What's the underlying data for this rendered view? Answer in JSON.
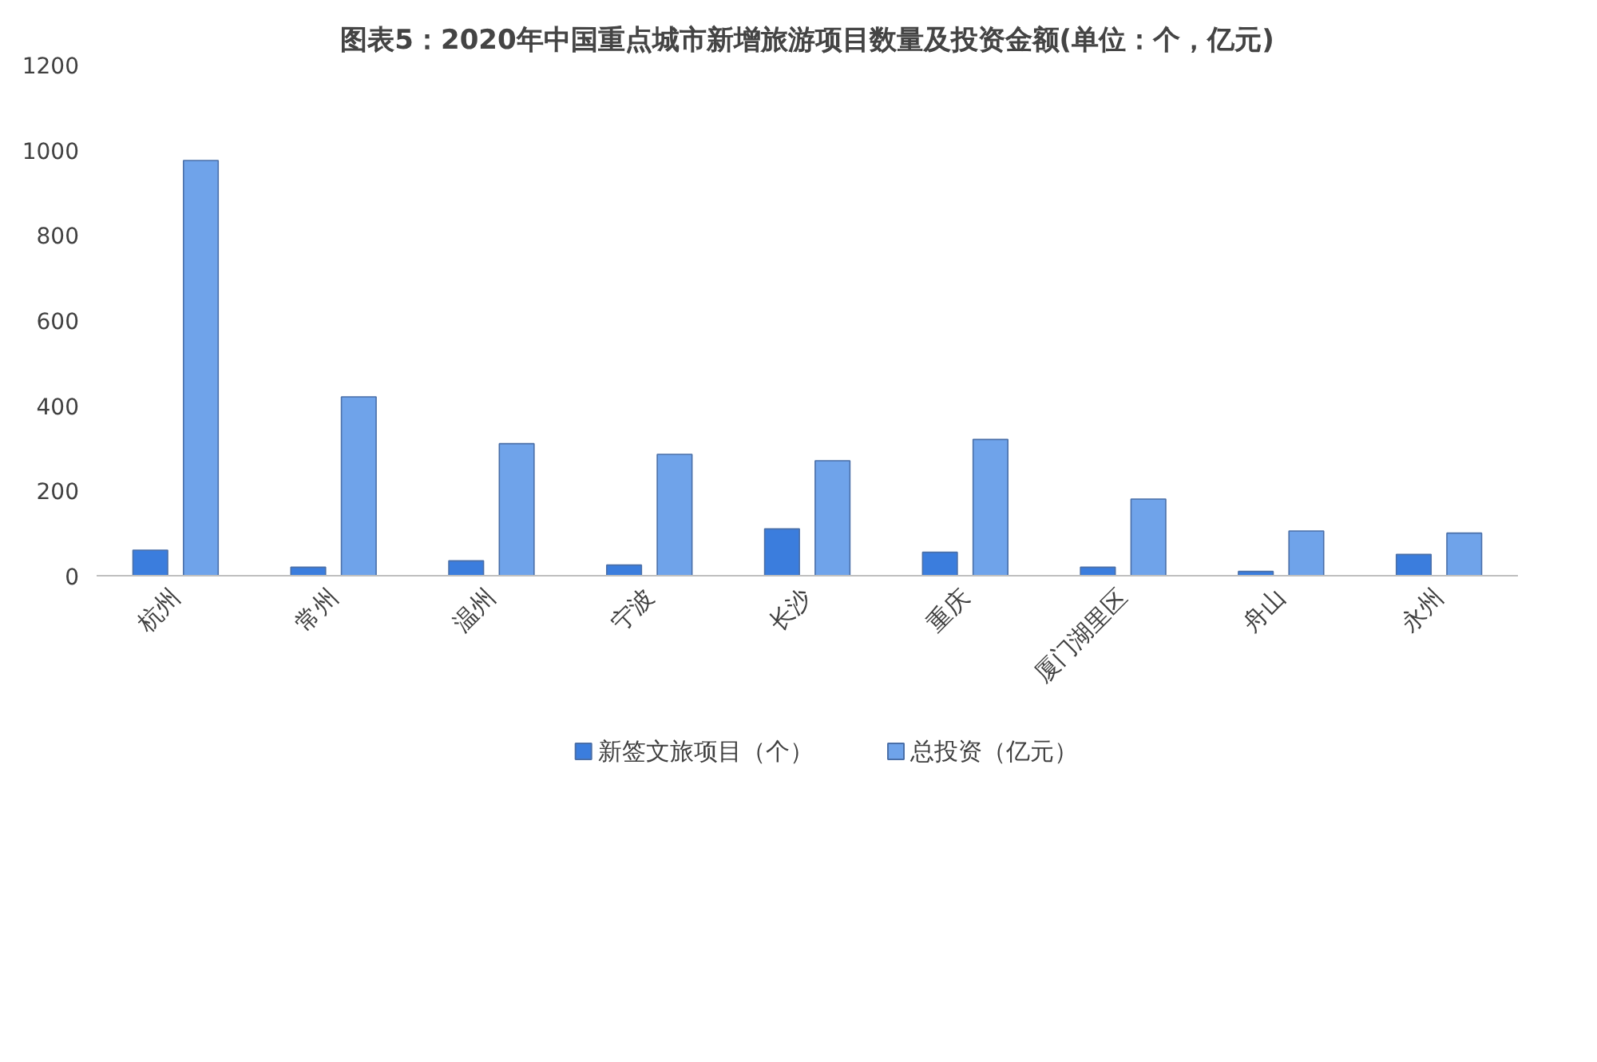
{
  "chart_data": {
    "type": "bar",
    "title": "图表5：2020年中国重点城市新增旅游项目数量及投资金额(单位：个，亿元)",
    "categories": [
      "杭州",
      "常州",
      "温州",
      "宁波",
      "长沙",
      "重庆",
      "厦门湖里区",
      "舟山",
      "永州"
    ],
    "series": [
      {
        "name": "新签文旅项目（个）",
        "color": "#3b7ddd",
        "values": [
          60,
          20,
          35,
          25,
          110,
          55,
          20,
          10,
          50
        ]
      },
      {
        "name": "总投资（亿元）",
        "color": "#6fa3ea",
        "values": [
          975,
          420,
          310,
          285,
          270,
          320,
          180,
          105,
          100
        ]
      }
    ],
    "ylim": [
      0,
      1200
    ],
    "yticks": [
      0,
      200,
      400,
      600,
      800,
      1000,
      1200
    ],
    "grid": false,
    "legend": "bottom"
  }
}
